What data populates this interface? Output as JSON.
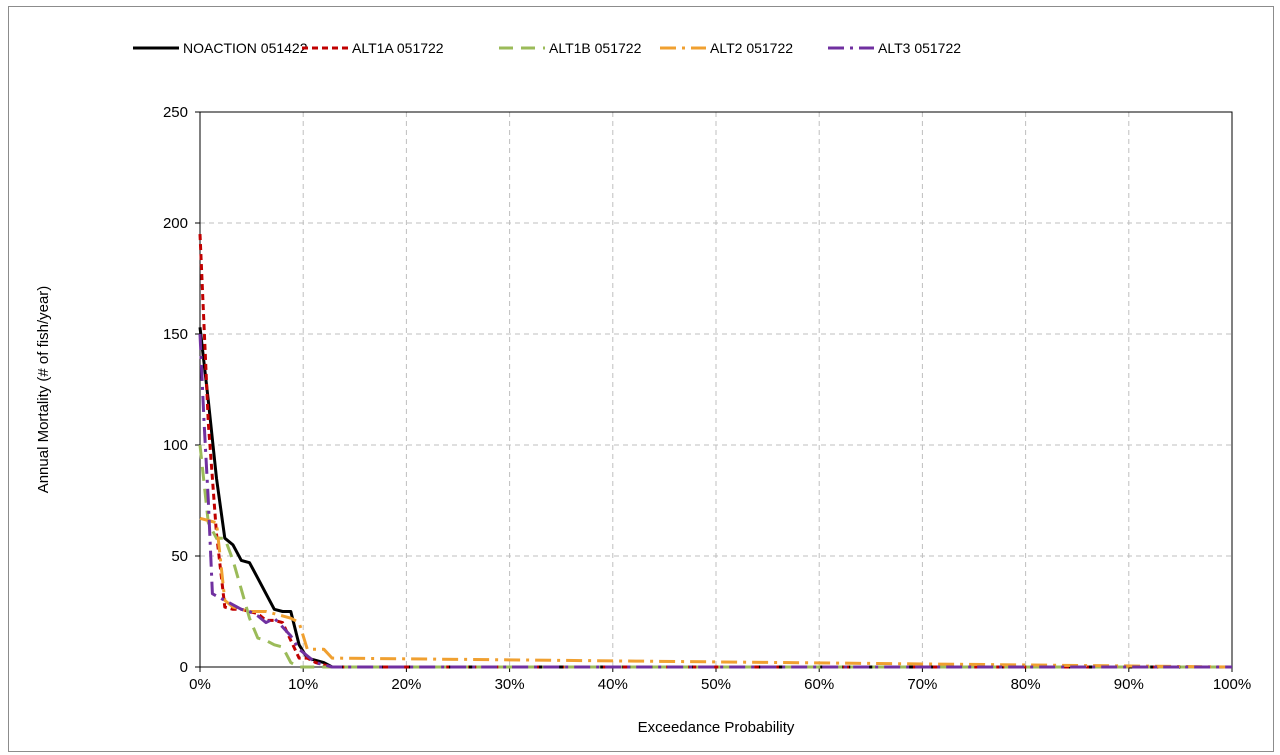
{
  "chart_data": {
    "type": "line",
    "title": "",
    "xlabel": "Exceedance Probability",
    "ylabel": "Annual Mortality (# of fish/year)",
    "xlim": [
      0,
      1
    ],
    "ylim": [
      0,
      250
    ],
    "x_ticks": [
      0,
      0.1,
      0.2,
      0.3,
      0.4,
      0.5,
      0.6,
      0.7,
      0.8,
      0.9,
      1.0
    ],
    "x_tick_labels": [
      "0%",
      "10%",
      "20%",
      "30%",
      "40%",
      "50%",
      "60%",
      "70%",
      "80%",
      "90%",
      "100%"
    ],
    "y_ticks": [
      0,
      50,
      100,
      150,
      200,
      250
    ],
    "y_tick_labels": [
      "0",
      "50",
      "100",
      "150",
      "200",
      "250"
    ],
    "grid": true,
    "legend_position": "top",
    "series": [
      {
        "name": "NOACTION 051422",
        "color": "#000000",
        "dash": "solid",
        "x": [
          0.0,
          0.008,
          0.016,
          0.024,
          0.032,
          0.04,
          0.048,
          0.056,
          0.064,
          0.072,
          0.08,
          0.088,
          0.096,
          0.104,
          0.112,
          0.12,
          0.128,
          1.0
        ],
        "y": [
          153,
          120,
          85,
          58,
          55,
          48,
          47,
          40,
          33,
          26,
          25,
          25,
          10,
          4,
          3,
          2,
          0,
          0
        ]
      },
      {
        "name": "ALT1A 051722",
        "color": "#c00000",
        "dash": "short",
        "x": [
          0.0,
          0.008,
          0.016,
          0.024,
          0.032,
          0.04,
          0.048,
          0.056,
          0.064,
          0.072,
          0.08,
          0.088,
          0.096,
          0.104,
          0.112,
          0.12,
          0.128,
          1.0
        ],
        "y": [
          195,
          110,
          60,
          27,
          26,
          26,
          25,
          24,
          21,
          21,
          20,
          12,
          4,
          4,
          2,
          1,
          0,
          0
        ]
      },
      {
        "name": "ALT1B 051722",
        "color": "#9bbb59",
        "dash": "long",
        "x": [
          0.0,
          0.008,
          0.016,
          0.024,
          0.032,
          0.04,
          0.048,
          0.056,
          0.064,
          0.072,
          0.08,
          0.088,
          0.096,
          0.104,
          0.112,
          0.12,
          0.128,
          1.0
        ],
        "y": [
          100,
          65,
          58,
          58,
          48,
          35,
          22,
          13,
          12,
          10,
          9,
          2,
          0,
          0,
          0,
          0,
          0,
          0
        ]
      },
      {
        "name": "ALT2 051722",
        "color": "#f0a030",
        "dash": "longdot",
        "x": [
          0.0,
          0.008,
          0.016,
          0.024,
          0.032,
          0.04,
          0.048,
          0.056,
          0.064,
          0.072,
          0.08,
          0.088,
          0.096,
          0.104,
          0.112,
          0.12,
          0.128,
          1.0
        ],
        "y": [
          67,
          66,
          65,
          30,
          27,
          26,
          25,
          25,
          25,
          24,
          23,
          22,
          20,
          8,
          8,
          8,
          4,
          0
        ]
      },
      {
        "name": "ALT3 051722",
        "color": "#7030a0",
        "dash": "longdot",
        "x": [
          0.0,
          0.004,
          0.008,
          0.012,
          0.016,
          0.024,
          0.032,
          0.04,
          0.048,
          0.056,
          0.064,
          0.072,
          0.08,
          0.088,
          0.096,
          0.104,
          0.112,
          0.12,
          0.128,
          1.0
        ],
        "y": [
          150,
          110,
          75,
          33,
          32,
          30,
          28,
          26,
          25,
          23,
          20,
          22,
          18,
          14,
          8,
          5,
          2,
          1,
          0,
          0
        ]
      }
    ]
  }
}
